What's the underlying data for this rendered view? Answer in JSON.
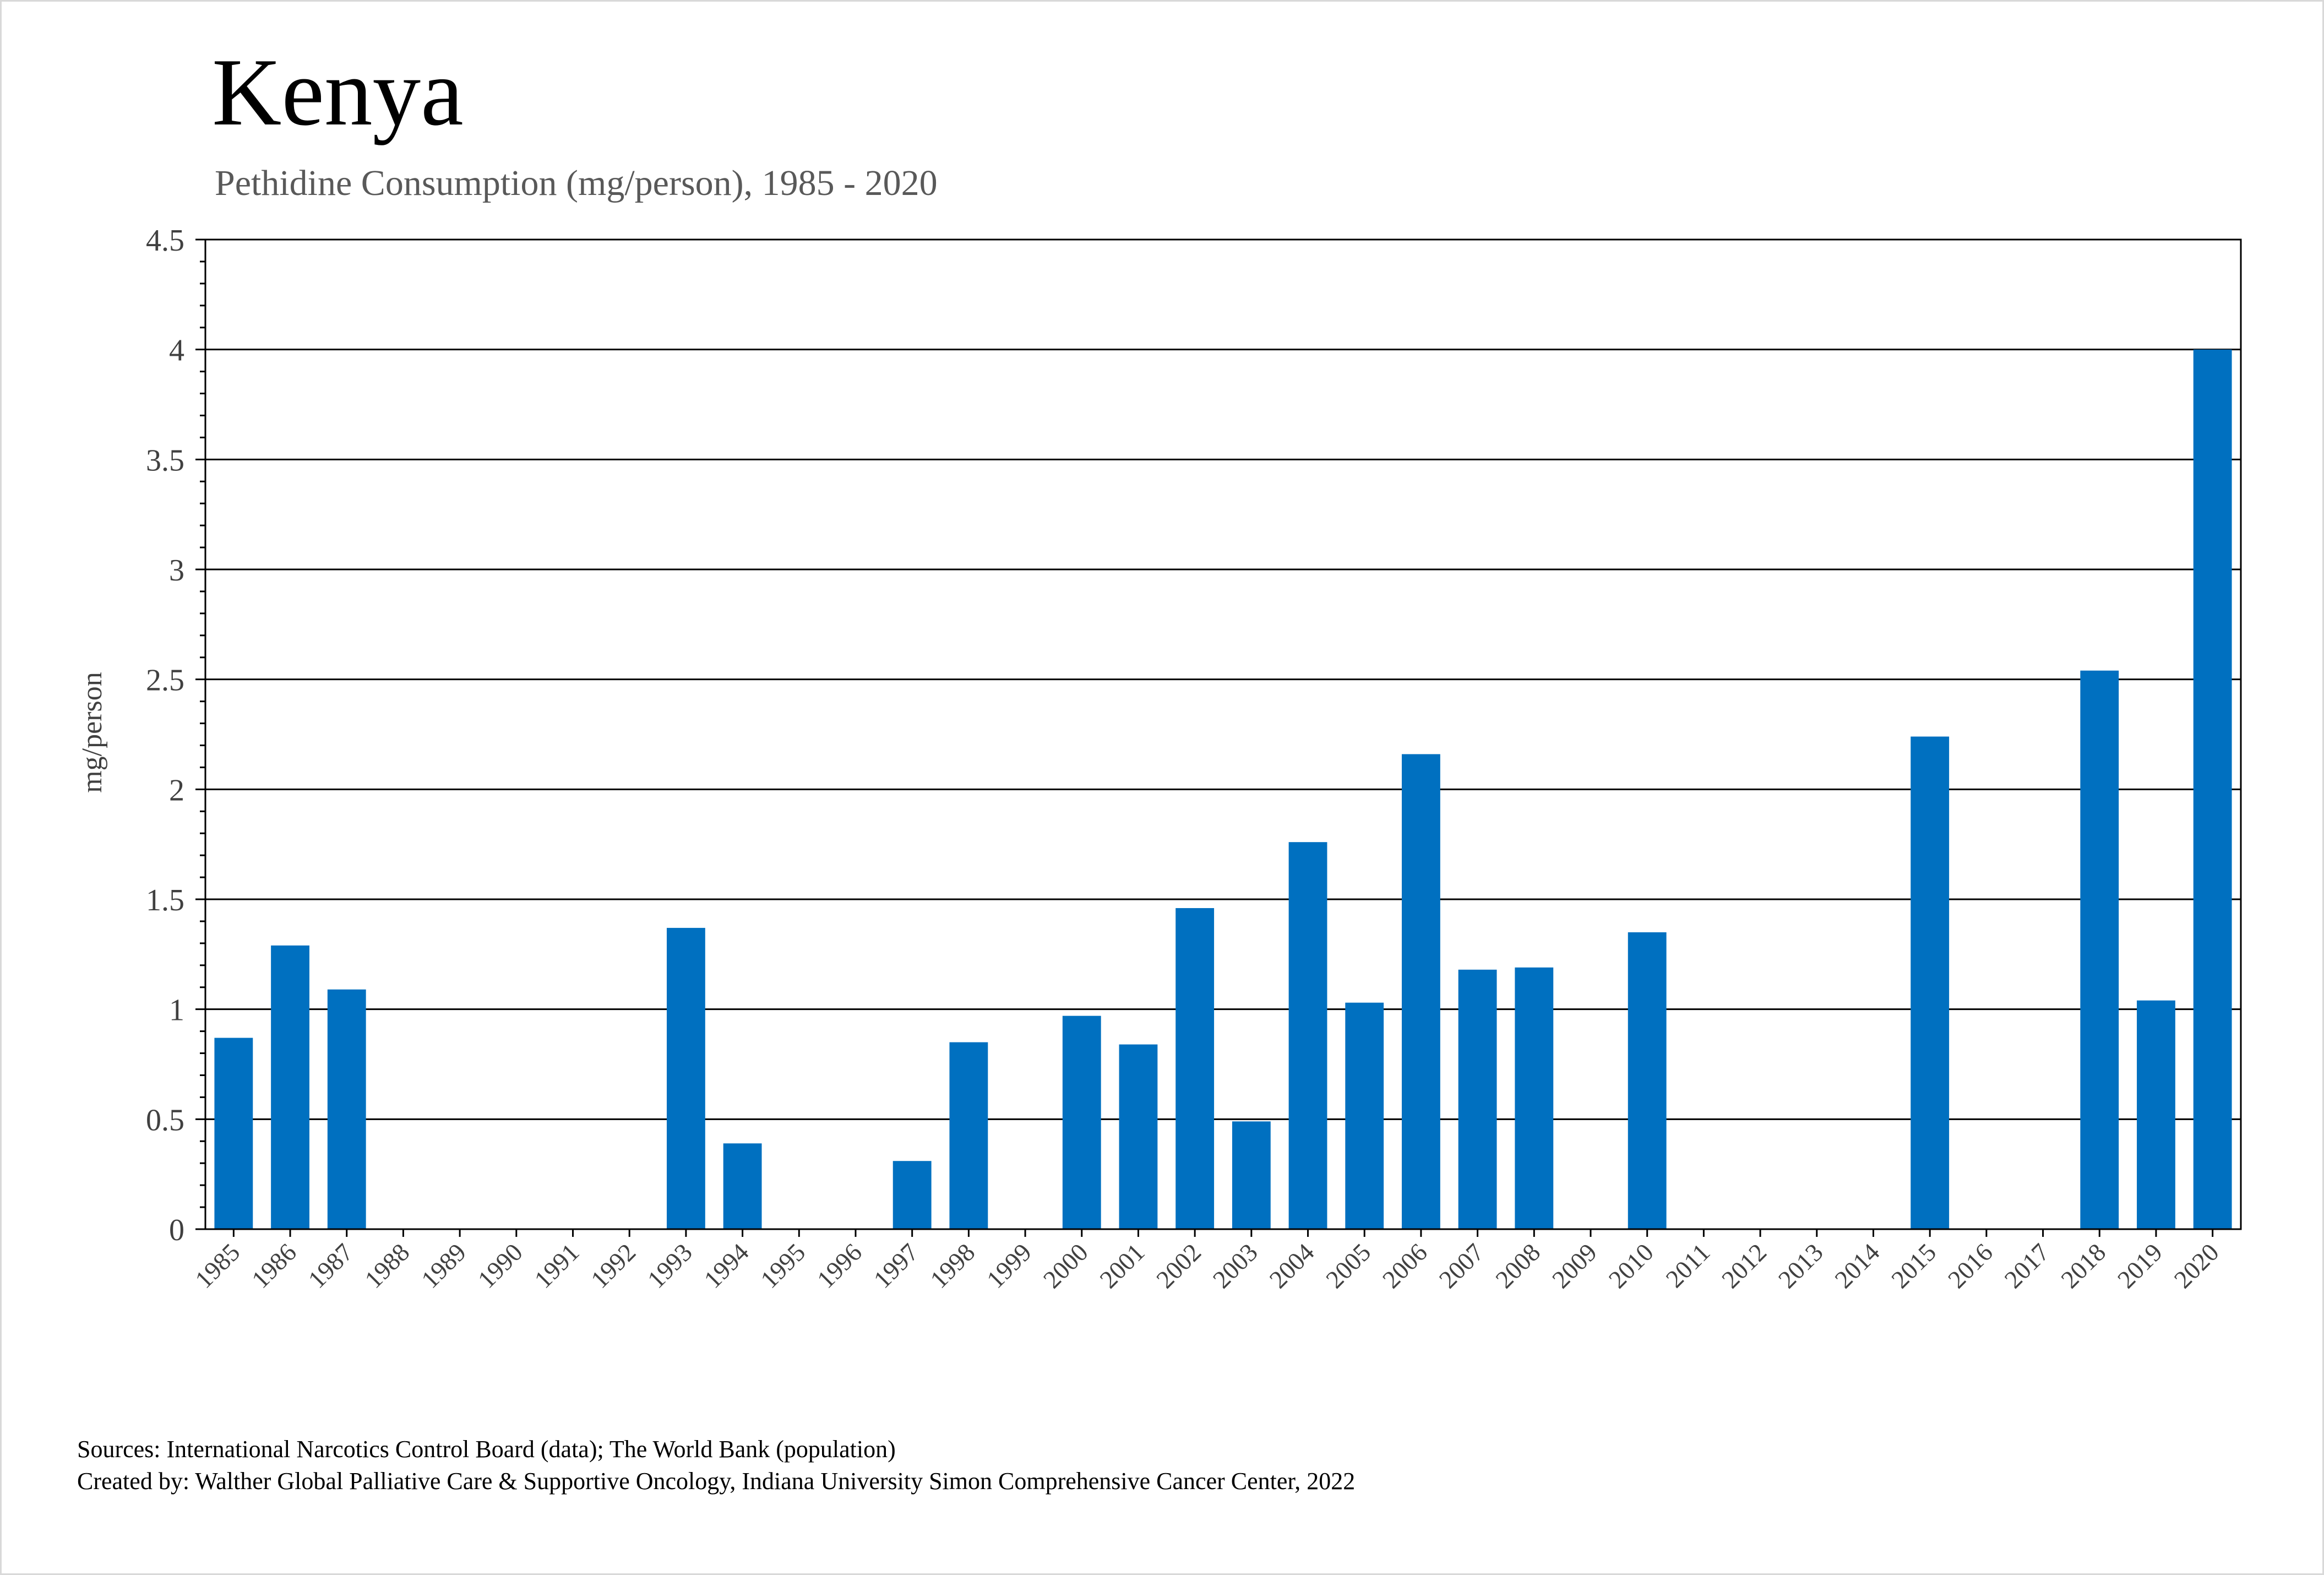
{
  "title": "Kenya",
  "subtitle": "Pethidine Consumption (mg/person), 1985 - 2020",
  "sources": "Sources: International Narcotics Control Board (data); The World Bank (population)",
  "created_by": "Created by: Walther Global Palliative Care & Supportive Oncology, Indiana University Simon Comprehensive Cancer Center, 2022",
  "colors": {
    "bar": "#0070c0",
    "grid": "#000000",
    "tick_text": "#404040"
  },
  "chart_data": {
    "type": "bar",
    "title": "Kenya",
    "subtitle": "Pethidine Consumption (mg/person), 1985 - 2020",
    "xlabel": "",
    "ylabel": "mg/person",
    "ylim": [
      0,
      4.5
    ],
    "yticks": [
      "0",
      "0.5",
      "1",
      "1.5",
      "2",
      "2.5",
      "3",
      "3.5",
      "4",
      "4.5"
    ],
    "grid": true,
    "categories": [
      "1985",
      "1986",
      "1987",
      "1988",
      "1989",
      "1990",
      "1991",
      "1992",
      "1993",
      "1994",
      "1995",
      "1996",
      "1997",
      "1998",
      "1999",
      "2000",
      "2001",
      "2002",
      "2003",
      "2004",
      "2005",
      "2006",
      "2007",
      "2008",
      "2009",
      "2010",
      "2011",
      "2012",
      "2013",
      "2014",
      "2015",
      "2016",
      "2017",
      "2018",
      "2019",
      "2020"
    ],
    "values": [
      0.87,
      1.29,
      1.09,
      0,
      0,
      0,
      0,
      0,
      1.37,
      0.39,
      0,
      0,
      0.31,
      0.85,
      0,
      0.97,
      0.84,
      1.46,
      0.49,
      1.76,
      1.03,
      2.16,
      1.18,
      1.19,
      0,
      1.35,
      0,
      0,
      0,
      0,
      2.24,
      0,
      0,
      2.54,
      1.04,
      4.0
    ]
  }
}
